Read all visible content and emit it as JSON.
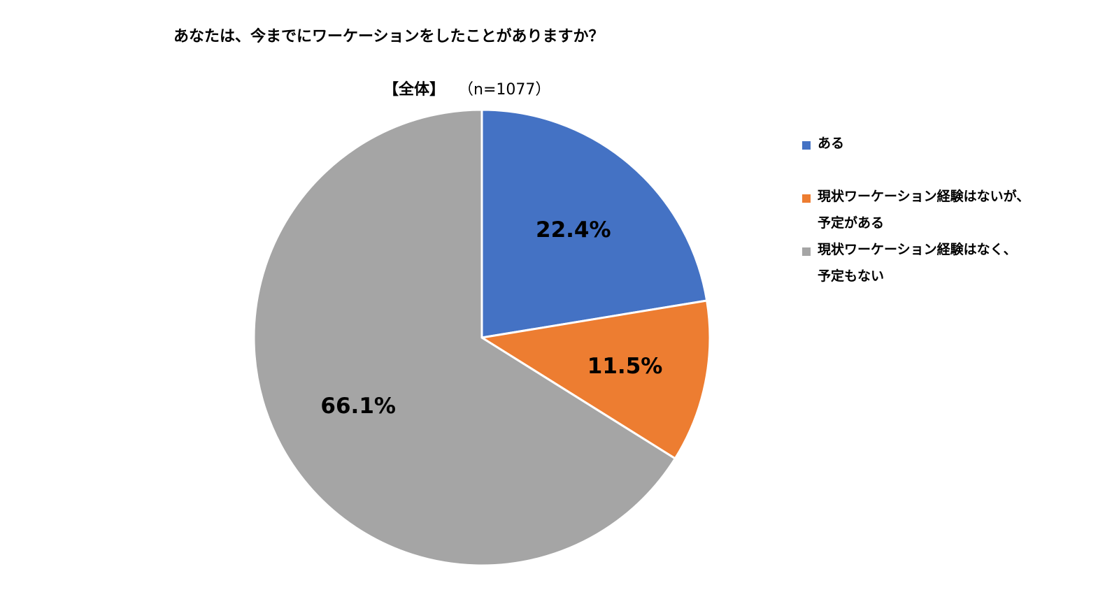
{
  "chart_data": {
    "type": "pie",
    "title": "あなたは、今までにワーケーションをしたことがありますか？",
    "subtitle_group": "【全体】",
    "subtitle_n": "（n=1077）",
    "slices": [
      {
        "label": "ある",
        "value": 22.4,
        "display": "22.4%",
        "color": "#4472C4"
      },
      {
        "label": "現状ワーケーション経験はないが、予定がある",
        "label_line1": "現状ワーケーション経験はないが、",
        "label_line2": "予定がある",
        "value": 11.5,
        "display": "11.5%",
        "color": "#ED7D31"
      },
      {
        "label": "現状ワーケーション経験はなく、予定もない",
        "label_line1": "現状ワーケーション経験はなく、",
        "label_line2": "予定もない",
        "value": 66.1,
        "display": "66.1%",
        "color": "#A5A5A5"
      }
    ],
    "legend_position": "right"
  }
}
